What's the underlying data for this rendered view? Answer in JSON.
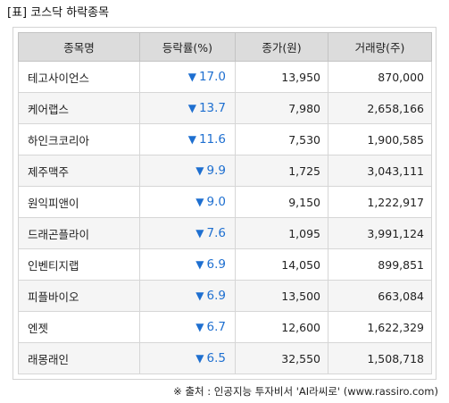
{
  "caption": "[표] 코스닥 하락종목",
  "table": {
    "headers": [
      "종목명",
      "등락률(%)",
      "종가(원)",
      "거래량(주)"
    ],
    "down_arrow": "▼",
    "rows": [
      {
        "name": "테고사이언스",
        "rate": "17.0",
        "close": "13,950",
        "volume": "870,000"
      },
      {
        "name": "케어랩스",
        "rate": "13.7",
        "close": "7,980",
        "volume": "2,658,166"
      },
      {
        "name": "하인크코리아",
        "rate": "11.6",
        "close": "7,530",
        "volume": "1,900,585"
      },
      {
        "name": "제주맥주",
        "rate": "9.9",
        "close": "1,725",
        "volume": "3,043,111"
      },
      {
        "name": "원익피앤이",
        "rate": "9.0",
        "close": "9,150",
        "volume": "1,222,917"
      },
      {
        "name": "드래곤플라이",
        "rate": "7.6",
        "close": "1,095",
        "volume": "3,991,124"
      },
      {
        "name": "인벤티지랩",
        "rate": "6.9",
        "close": "14,050",
        "volume": "899,851"
      },
      {
        "name": "피플바이오",
        "rate": "6.9",
        "close": "13,500",
        "volume": "663,084"
      },
      {
        "name": "엔젯",
        "rate": "6.7",
        "close": "12,600",
        "volume": "1,622,329"
      },
      {
        "name": "래몽래인",
        "rate": "6.5",
        "close": "32,550",
        "volume": "1,508,718"
      }
    ]
  },
  "colors": {
    "decline": "#1e6fd0",
    "header_bg": "#dcdcdc",
    "stripe_bg": "#f5f5f5"
  },
  "source": "※ 출처 : 인공지능 투자비서 'AI라씨로' (www.rassiro.com)"
}
